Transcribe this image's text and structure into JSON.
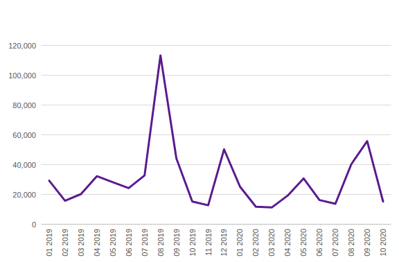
{
  "chart_data": {
    "type": "line",
    "categories": [
      "01 2019",
      "02 2019",
      "03 2019",
      "04 2019",
      "05 2019",
      "06 2019",
      "07 2019",
      "08 2019",
      "09 2019",
      "10 2019",
      "11 2019",
      "12 2019",
      "01 2020",
      "02 2020",
      "03 2020",
      "04 2020",
      "05 2020",
      "06 2020",
      "07 2020",
      "08 2020",
      "09 2020",
      "10 2020"
    ],
    "values": [
      29000,
      15500,
      20000,
      32000,
      28000,
      24000,
      32500,
      113000,
      44000,
      15000,
      12500,
      50000,
      25000,
      11500,
      11000,
      19000,
      30500,
      16000,
      13500,
      40000,
      55500,
      15000
    ],
    "color": "#5c1a8e",
    "ylim": [
      0,
      120000
    ],
    "yticks": [
      0,
      {
        "value": 20000,
        "label": "20,000"
      },
      {
        "value": 40000,
        "label": "40,000"
      },
      {
        "value": 60000,
        "label": "60,000"
      },
      {
        "value": 80000,
        "label": "80,000"
      },
      {
        "value": 100000,
        "label": "100,000"
      },
      {
        "value": 120000,
        "label": "120,000"
      }
    ],
    "grid": true
  }
}
